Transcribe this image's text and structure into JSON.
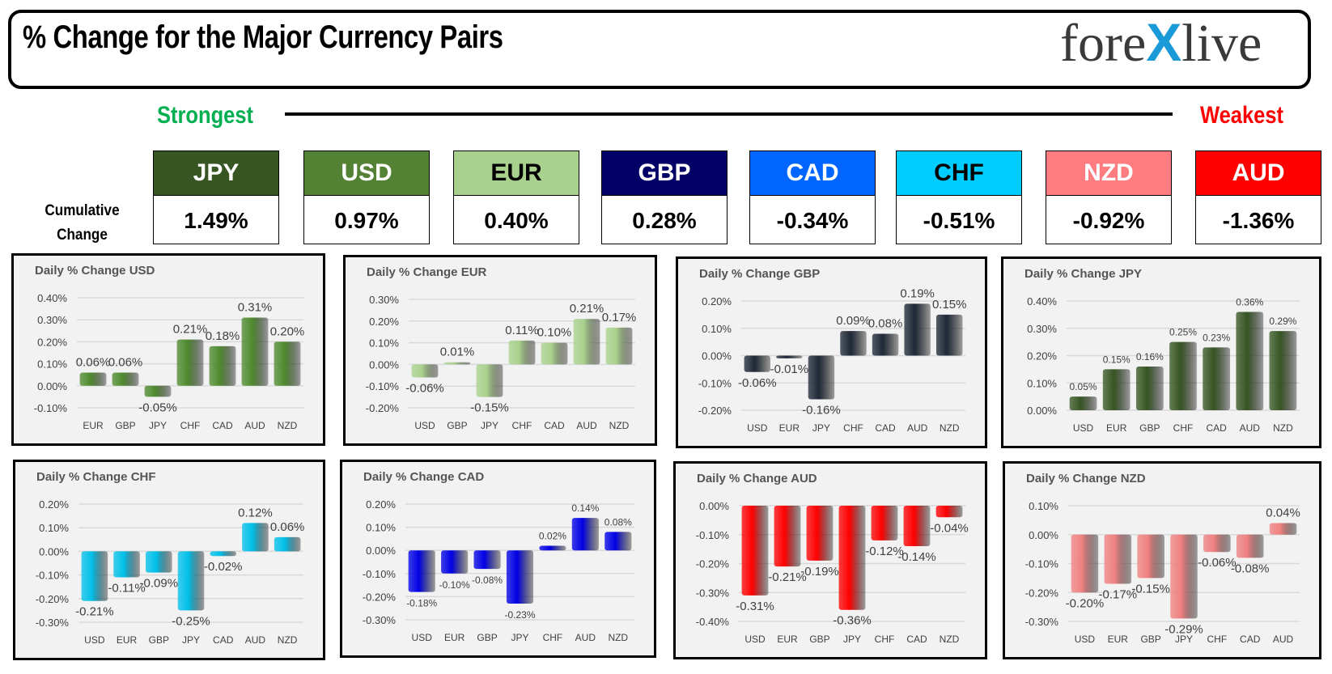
{
  "header": {
    "title": "% Change for the Major Currency Pairs",
    "logo_text": "forexlive"
  },
  "scale": {
    "strongest": "Strongest",
    "weakest": "Weakest"
  },
  "cumulative": {
    "label_line1": "Cumulative",
    "label_line2": "Change",
    "items": [
      {
        "currency": "JPY",
        "value": "1.49%",
        "bg": "#375623",
        "fg": "#ffffff"
      },
      {
        "currency": "USD",
        "value": "0.97%",
        "bg": "#548235",
        "fg": "#ffffff"
      },
      {
        "currency": "EUR",
        "value": "0.40%",
        "bg": "#a9d18e",
        "fg": "#000000"
      },
      {
        "currency": "GBP",
        "value": "0.28%",
        "bg": "#000066",
        "fg": "#ffffff"
      },
      {
        "currency": "CAD",
        "value": "-0.34%",
        "bg": "#0066ff",
        "fg": "#ffffff"
      },
      {
        "currency": "CHF",
        "value": "-0.51%",
        "bg": "#00ccff",
        "fg": "#000000"
      },
      {
        "currency": "NZD",
        "value": "-0.92%",
        "bg": "#ff7c80",
        "fg": "#ffffff"
      },
      {
        "currency": "AUD",
        "value": "-1.36%",
        "bg": "#ff0000",
        "fg": "#ffffff"
      }
    ]
  },
  "chart_data": [
    {
      "type": "bar",
      "title": "Daily % Change USD",
      "categories": [
        "EUR",
        "GBP",
        "JPY",
        "CHF",
        "CAD",
        "AUD",
        "NZD"
      ],
      "values": [
        0.06,
        0.06,
        -0.05,
        0.21,
        0.18,
        0.31,
        0.2
      ],
      "ylim": [
        -0.1,
        0.4
      ],
      "unit": "%",
      "grid": true,
      "color": "#4e8a2e"
    },
    {
      "type": "bar",
      "title": "Daily % Change EUR",
      "categories": [
        "USD",
        "GBP",
        "JPY",
        "CHF",
        "CAD",
        "AUD",
        "NZD"
      ],
      "values": [
        -0.06,
        0.01,
        -0.15,
        0.11,
        0.1,
        0.21,
        0.17
      ],
      "ylim": [
        -0.2,
        0.3
      ],
      "unit": "%",
      "grid": true,
      "color": "#a9d18e"
    },
    {
      "type": "bar",
      "title": "Daily % Change GBP",
      "categories": [
        "USD",
        "EUR",
        "JPY",
        "CHF",
        "CAD",
        "AUD",
        "NZD"
      ],
      "values": [
        -0.06,
        -0.01,
        -0.16,
        0.09,
        0.08,
        0.19,
        0.15
      ],
      "ylim": [
        -0.2,
        0.2
      ],
      "unit": "%",
      "grid": true,
      "color": "#1e2836"
    },
    {
      "type": "bar",
      "title": "Daily % Change JPY",
      "categories": [
        "USD",
        "EUR",
        "GBP",
        "CHF",
        "CAD",
        "AUD",
        "NZD"
      ],
      "values": [
        0.05,
        0.15,
        0.16,
        0.25,
        0.23,
        0.36,
        0.29
      ],
      "ylim": [
        0,
        0.4
      ],
      "unit": "%",
      "grid": true,
      "color": "#375623"
    },
    {
      "type": "bar",
      "title": "Daily % Change CHF",
      "categories": [
        "USD",
        "EUR",
        "GBP",
        "JPY",
        "CAD",
        "AUD",
        "NZD"
      ],
      "values": [
        -0.21,
        -0.11,
        -0.09,
        -0.25,
        -0.02,
        0.12,
        0.06
      ],
      "ylim": [
        -0.3,
        0.2
      ],
      "unit": "%",
      "grid": true,
      "color": "#00c0ea"
    },
    {
      "type": "bar",
      "title": "Daily % Change CAD",
      "categories": [
        "USD",
        "EUR",
        "GBP",
        "JPY",
        "CHF",
        "AUD",
        "NZD"
      ],
      "values": [
        -0.18,
        -0.1,
        -0.08,
        -0.23,
        0.02,
        0.14,
        0.08
      ],
      "ylim": [
        -0.3,
        0.2
      ],
      "unit": "%",
      "grid": true,
      "color": "#0000e6"
    },
    {
      "type": "bar",
      "title": "Daily % Change AUD",
      "categories": [
        "USD",
        "EUR",
        "GBP",
        "JPY",
        "CHF",
        "CAD",
        "NZD"
      ],
      "values": [
        -0.31,
        -0.21,
        -0.19,
        -0.36,
        -0.12,
        -0.14,
        -0.04
      ],
      "ylim": [
        -0.4,
        0
      ],
      "unit": "%",
      "grid": true,
      "color": "#ff0000"
    },
    {
      "type": "bar",
      "title": "Daily % Change NZD",
      "categories": [
        "USD",
        "EUR",
        "GBP",
        "JPY",
        "CHF",
        "CAD",
        "AUD"
      ],
      "values": [
        -0.2,
        -0.17,
        -0.15,
        -0.29,
        -0.06,
        -0.08,
        0.04
      ],
      "ylim": [
        -0.3,
        0.1
      ],
      "unit": "%",
      "grid": true,
      "color": "#f08080"
    }
  ]
}
